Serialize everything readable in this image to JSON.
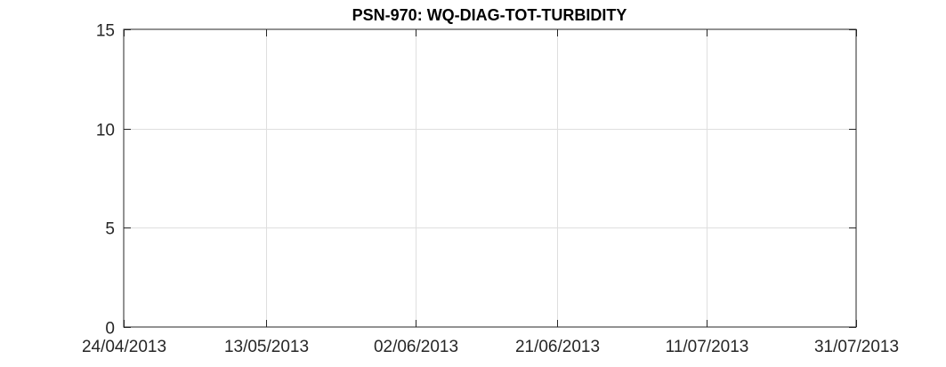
{
  "chart_data": {
    "type": "line",
    "title": "PSN-970: WQ-DIAG-TOT-TURBIDITY",
    "xlabel": "",
    "ylabel": "",
    "x_type": "date",
    "x_tick_labels": [
      "24/04/2013",
      "13/05/2013",
      "02/06/2013",
      "21/06/2013",
      "11/07/2013",
      "31/07/2013"
    ],
    "x_ticks": [
      "2013-04-24",
      "2013-05-13",
      "2013-06-02",
      "2013-06-21",
      "2013-07-11",
      "2013-07-31"
    ],
    "xlim": [
      "2013-04-24",
      "2013-07-31"
    ],
    "y_ticks": [
      0,
      5,
      10,
      15
    ],
    "y_tick_labels": [
      "0",
      "5",
      "10",
      "15"
    ],
    "ylim": [
      0,
      15
    ],
    "grid": true,
    "series": []
  },
  "colors": {
    "axis": "#262626",
    "grid": "#dfdfdf",
    "background": "#ffffff"
  }
}
